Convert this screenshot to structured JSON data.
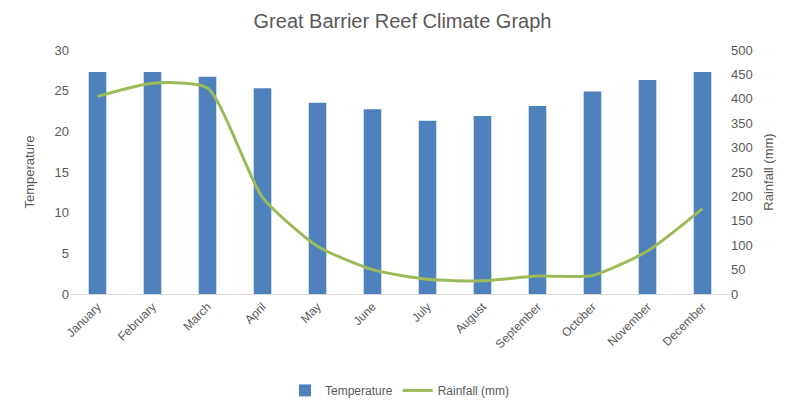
{
  "chart_data": {
    "type": "bar",
    "title": "Great Barrier Reef Climate Graph",
    "categories": [
      "January",
      "February",
      "March",
      "April",
      "May",
      "June",
      "July",
      "August",
      "September",
      "October",
      "November",
      "December"
    ],
    "series": [
      {
        "name": "Temperature",
        "type": "bar",
        "color": "#4f81bd",
        "axis": "y",
        "values": [
          27.3,
          27.3,
          26.7,
          25.3,
          23.5,
          22.7,
          21.3,
          21.9,
          23.1,
          24.9,
          26.3,
          27.3
        ]
      },
      {
        "name": "Rainfall (mm)",
        "type": "line",
        "color": "#9bbb59",
        "axis": "y2",
        "values": [
          405,
          432,
          422,
          198,
          98,
          50,
          30,
          27,
          37,
          38,
          88,
          175
        ]
      }
    ],
    "y_label": "Temperature",
    "y2_label": "Rainfall (mm)",
    "ylim": [
      0,
      30
    ],
    "yticks": [
      0,
      5,
      10,
      15,
      20,
      25,
      30
    ],
    "y2lim": [
      0,
      500
    ],
    "y2ticks": [
      0,
      50,
      100,
      150,
      200,
      250,
      300,
      350,
      400,
      450,
      500
    ],
    "grid": false,
    "legend": "bottom"
  }
}
